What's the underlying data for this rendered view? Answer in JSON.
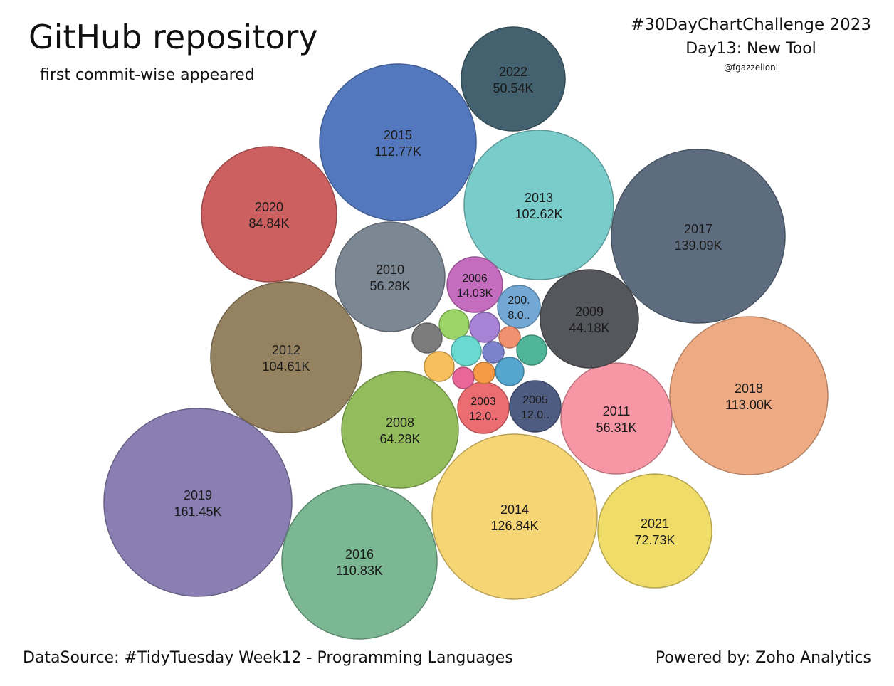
{
  "header": {
    "title": "GitHub repository",
    "subtitle": "first commit-wise appeared",
    "challenge": "#30DayChartChallenge 2023",
    "day": "Day13: New Tool",
    "author": "@fgazzelloni"
  },
  "footer": {
    "source": "DataSource: #TidyTuesday Week12 - Programming Languages",
    "powered": "Powered by: Zoho Analytics"
  },
  "chart_data": {
    "type": "packed-bubble",
    "title": "GitHub repository",
    "subtitle": "first commit-wise appeared",
    "bubbles": [
      {
        "year": "2019",
        "value": 161.45,
        "value_label": "161.45K",
        "color": "#8a7fb2"
      },
      {
        "year": "2017",
        "value": 139.09,
        "value_label": "139.09K",
        "color": "#5d6d7f"
      },
      {
        "year": "2014",
        "value": 126.84,
        "value_label": "126.84K",
        "color": "#f6d574"
      },
      {
        "year": "2018",
        "value": 113.0,
        "value_label": "113.00K",
        "color": "#eeaa83"
      },
      {
        "year": "2015",
        "value": 112.77,
        "value_label": "112.77K",
        "color": "#5478be"
      },
      {
        "year": "2016",
        "value": 110.83,
        "value_label": "110.83K",
        "color": "#7bb793"
      },
      {
        "year": "2012",
        "value": 104.61,
        "value_label": "104.61K",
        "color": "#958260"
      },
      {
        "year": "2013",
        "value": 102.62,
        "value_label": "102.62K",
        "color": "#7acccb"
      },
      {
        "year": "2020",
        "value": 84.84,
        "value_label": "84.84K",
        "color": "#cc5f5f"
      },
      {
        "year": "2021",
        "value": 72.73,
        "value_label": "72.73K",
        "color": "#f0dc69"
      },
      {
        "year": "2008",
        "value": 64.28,
        "value_label": "64.28K",
        "color": "#93bd5d"
      },
      {
        "year": "2011",
        "value": 56.31,
        "value_label": "56.31K",
        "color": "#f797a6"
      },
      {
        "year": "2010",
        "value": 56.28,
        "value_label": "56.28K",
        "color": "#7c8794"
      },
      {
        "year": "2022",
        "value": 50.54,
        "value_label": "50.54K",
        "color": "#43616e"
      },
      {
        "year": "2009",
        "value": 44.18,
        "value_label": "44.18K",
        "color": "#55575c"
      },
      {
        "year": "2006",
        "value": 14.03,
        "value_label": "14.03K",
        "color": "#c46dbe"
      },
      {
        "year": "2003",
        "value": 12.0,
        "value_label": "12.0..",
        "color": "#eb6d72"
      },
      {
        "year": "2005",
        "value": 12.0,
        "value_label": "12.0..",
        "color": "#4e5c82"
      },
      {
        "year": "200.",
        "value": 8.0,
        "value_label": "8.0..",
        "color": "#73a8d4"
      },
      {
        "year": "",
        "value": null,
        "value_label": "",
        "color": "#9bd467"
      },
      {
        "year": "",
        "value": null,
        "value_label": "",
        "color": "#a883d6"
      },
      {
        "year": "",
        "value": null,
        "value_label": "",
        "color": "#7b7b7b"
      },
      {
        "year": "",
        "value": null,
        "value_label": "",
        "color": "#f2916f"
      },
      {
        "year": "",
        "value": null,
        "value_label": "",
        "color": "#6ad9cf"
      },
      {
        "year": "",
        "value": null,
        "value_label": "",
        "color": "#7d82cc"
      },
      {
        "year": "",
        "value": null,
        "value_label": "",
        "color": "#4fb49a"
      },
      {
        "year": "",
        "value": null,
        "value_label": "",
        "color": "#f7c05c"
      },
      {
        "year": "",
        "value": null,
        "value_label": "",
        "color": "#f59a45"
      },
      {
        "year": "",
        "value": null,
        "value_label": "",
        "color": "#e9669a"
      },
      {
        "year": "",
        "value": null,
        "value_label": "",
        "color": "#54a6cf"
      }
    ]
  }
}
